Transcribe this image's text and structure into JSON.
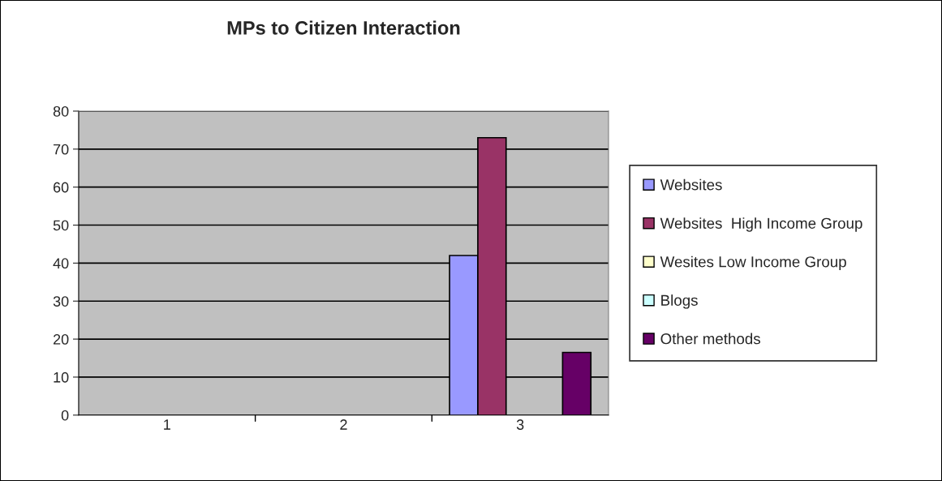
{
  "chart_data": {
    "type": "bar",
    "title": "MPs to Citizen Interaction",
    "categories": [
      "1",
      "2",
      "3"
    ],
    "series": [
      {
        "name": "Websites",
        "color": "#9999ff",
        "values": [
          null,
          null,
          42
        ]
      },
      {
        "name": "Websites  High Income Group",
        "color": "#993366",
        "values": [
          null,
          null,
          73
        ]
      },
      {
        "name": "Wesites Low Income Group",
        "color": "#ffffcc",
        "values": [
          null,
          null,
          null
        ]
      },
      {
        "name": "Blogs",
        "color": "#ccffff",
        "values": [
          null,
          null,
          null
        ]
      },
      {
        "name": "Other methods",
        "color": "#660066",
        "values": [
          null,
          null,
          16.5
        ]
      }
    ],
    "ylim": [
      0,
      80
    ],
    "yticks": [
      0,
      10,
      20,
      30,
      40,
      50,
      60,
      70,
      80
    ],
    "grid": "y",
    "legend": "right"
  }
}
